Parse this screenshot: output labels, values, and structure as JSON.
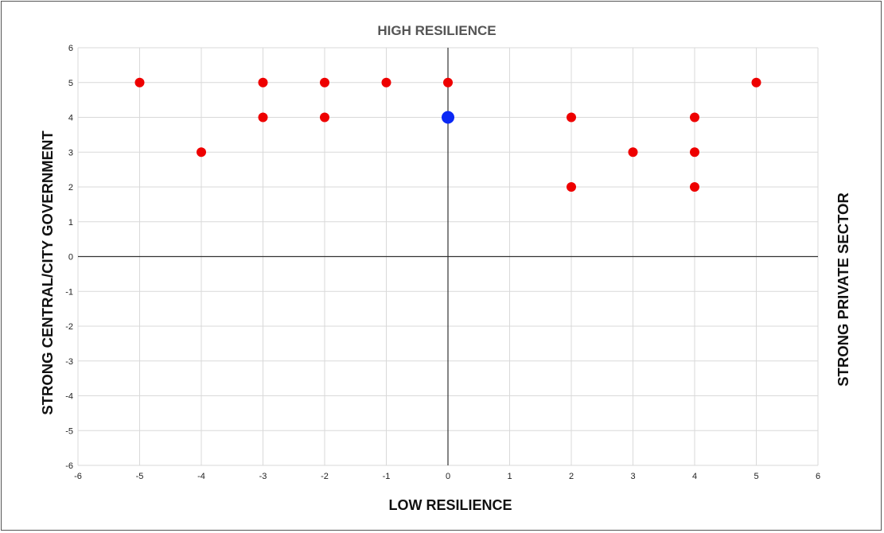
{
  "chart_data": {
    "type": "scatter",
    "title": "HIGH RESILIENCE",
    "xlabel": "LOW RESILIENCE",
    "ylabel": "STRONG CENTRAL/CITY GOVERNMENT",
    "ylabel_right": "STRONG PRIVATE SECTOR",
    "xlim": [
      -6,
      6
    ],
    "ylim": [
      -6,
      6
    ],
    "xticks": [
      "-6",
      "-5",
      "-4",
      "-3",
      "-2",
      "-1",
      "0",
      "1",
      "2",
      "3",
      "4",
      "5",
      "6"
    ],
    "yticks": [
      "6",
      "5",
      "4",
      "3",
      "2",
      "1",
      "0",
      "-1",
      "-2",
      "-3",
      "-4",
      "-5",
      "-6"
    ],
    "grid": true,
    "series": [
      {
        "color": "#ee0000",
        "points": [
          [
            -5,
            5
          ],
          [
            -3,
            5
          ],
          [
            -2,
            5
          ],
          [
            -1,
            5
          ],
          [
            0,
            5
          ],
          [
            5,
            5
          ],
          [
            -3,
            4
          ],
          [
            -2,
            4
          ],
          [
            2,
            4
          ],
          [
            4,
            4
          ],
          [
            -4,
            3
          ],
          [
            3,
            3
          ],
          [
            4,
            3
          ],
          [
            2,
            2
          ],
          [
            4,
            2
          ]
        ]
      },
      {
        "color": "#0a28f5",
        "points": [
          [
            0,
            4
          ]
        ]
      }
    ]
  }
}
